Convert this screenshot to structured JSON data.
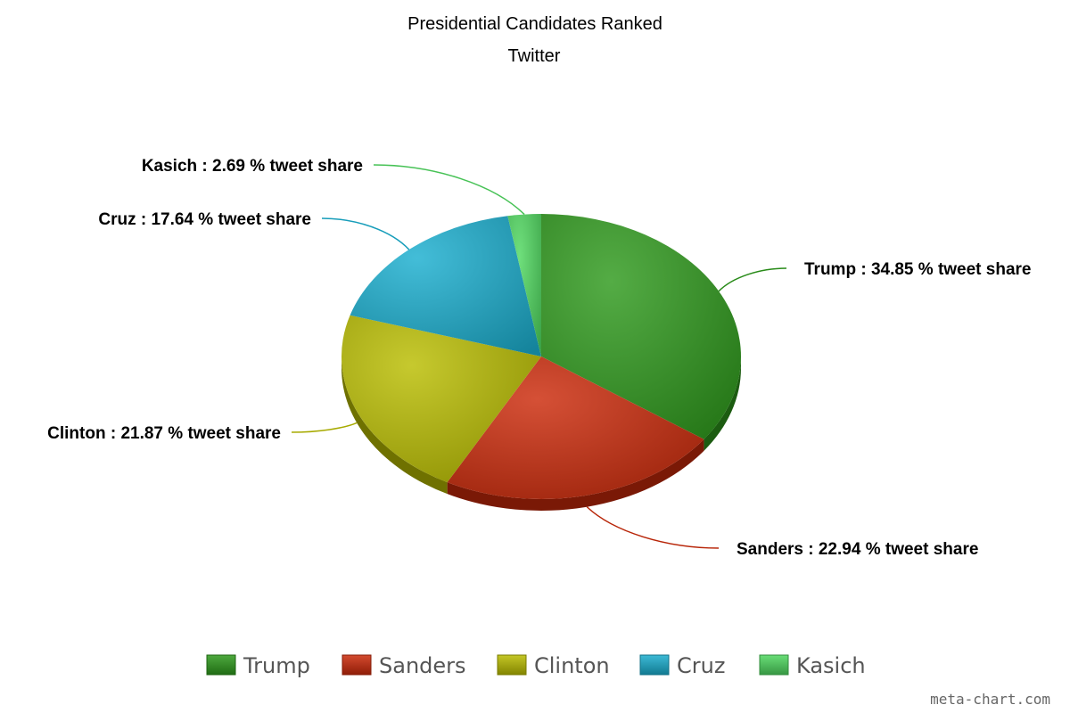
{
  "chart_data": {
    "type": "pie",
    "title": "Presidential Candidates Ranked",
    "subtitle": "Twitter",
    "label_suffix": "% tweet share",
    "categories": [
      "Trump",
      "Sanders",
      "Clinton",
      "Cruz",
      "Kasich"
    ],
    "values": [
      34.85,
      22.94,
      21.87,
      17.64,
      2.69
    ],
    "value_labels": [
      "34.85",
      "22.94",
      "21.87",
      "17.64",
      "2.69"
    ],
    "colors": [
      "#2e9a1c",
      "#cc2a0a",
      "#b9bd00",
      "#1aaecf",
      "#4fd85f"
    ],
    "legend_position": "bottom",
    "three_d": true
  },
  "credit": "meta-chart.com"
}
